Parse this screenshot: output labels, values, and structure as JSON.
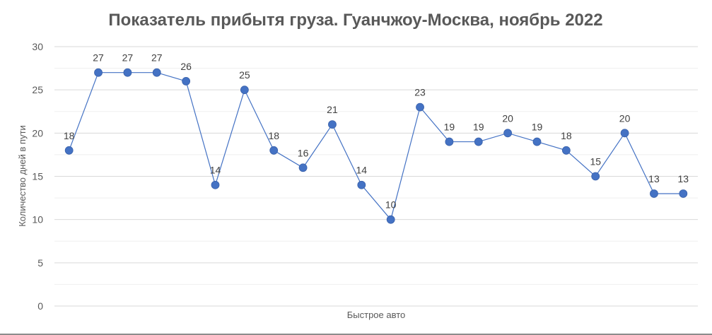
{
  "chart_data": {
    "type": "line",
    "title": "Показатель прибытя груза. Гуанчжоу-Москва, ноябрь 2022",
    "xlabel": "Быстрое авто",
    "ylabel": "Количество дней в пути",
    "ylim": [
      0,
      30
    ],
    "yticks": [
      0,
      5,
      10,
      15,
      20,
      25,
      30
    ],
    "grid": true,
    "series": [
      {
        "values": [
          18,
          27,
          27,
          27,
          26,
          14,
          25,
          18,
          16,
          21,
          14,
          10,
          23,
          19,
          19,
          20,
          19,
          18,
          15,
          20,
          13,
          13
        ]
      }
    ],
    "color": "#4472C4"
  }
}
